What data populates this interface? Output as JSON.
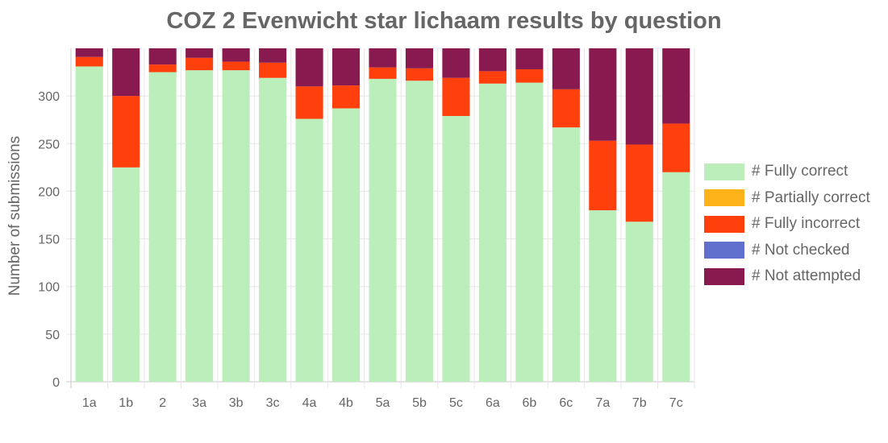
{
  "chart_data": {
    "type": "bar",
    "stacked": true,
    "title": "COZ 2 Evenwicht star lichaam results by question",
    "xlabel": "",
    "ylabel": "Number of submissions",
    "ylim": [
      0,
      350
    ],
    "yticks": [
      0,
      50,
      100,
      150,
      200,
      250,
      300
    ],
    "grid": true,
    "legend_position": "right",
    "categories": [
      "1a",
      "1b",
      "2",
      "3a",
      "3b",
      "3c",
      "4a",
      "4b",
      "5a",
      "5b",
      "5c",
      "6a",
      "6b",
      "6c",
      "7a",
      "7b",
      "7c"
    ],
    "series": [
      {
        "name": "# Fully correct",
        "color": "#bbeebb",
        "values": [
          331,
          225,
          325,
          327,
          327,
          319,
          276,
          287,
          318,
          316,
          279,
          313,
          314,
          267,
          180,
          168,
          220
        ]
      },
      {
        "name": "# Partially correct",
        "color": "#ffb31a",
        "values": [
          0,
          0,
          0,
          0,
          0,
          0,
          0,
          0,
          0,
          0,
          0,
          0,
          0,
          0,
          0,
          0,
          0
        ]
      },
      {
        "name": "# Fully incorrect",
        "color": "#ff3f0c",
        "values": [
          10,
          75,
          8,
          13,
          9,
          16,
          34,
          24,
          12,
          13,
          40,
          13,
          14,
          40,
          73,
          81,
          51
        ]
      },
      {
        "name": "# Not checked",
        "color": "#6070cc",
        "values": [
          0,
          0,
          0,
          0,
          0,
          0,
          0,
          0,
          0,
          0,
          0,
          0,
          0,
          0,
          0,
          0,
          0
        ]
      },
      {
        "name": "# Not attempted",
        "color": "#881a4f",
        "values": [
          9,
          50,
          17,
          10,
          14,
          15,
          40,
          39,
          20,
          21,
          31,
          24,
          22,
          43,
          97,
          101,
          79
        ]
      }
    ]
  }
}
